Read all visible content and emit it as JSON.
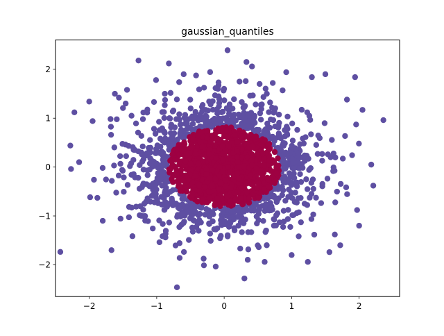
{
  "chart_data": {
    "type": "scatter",
    "title": "gaussian_quantiles",
    "xlabel": "",
    "ylabel": "",
    "xlim": [
      -2.5,
      2.6
    ],
    "ylim": [
      -2.65,
      2.6
    ],
    "xticks": [
      -2,
      -1,
      0,
      1,
      2
    ],
    "yticks": [
      -2,
      -1,
      0,
      1,
      2
    ],
    "xtick_labels": [
      "−2",
      "−1",
      "0",
      "1",
      "2"
    ],
    "ytick_labels": [
      "−2",
      "−1",
      "0",
      "1",
      "2"
    ],
    "grid": false,
    "legend": "none",
    "distribution": {
      "kind": "2d-gaussian",
      "mean": [
        0,
        0
      ],
      "std": 0.62,
      "samples": 2200,
      "class_boundary_radius": 0.82
    },
    "outlier_points": {
      "x": [
        -2.28,
        -2.22,
        -2.27,
        -2.15,
        -2.0,
        -1.95,
        -1.93,
        -1.8,
        -1.67,
        -1.62,
        -1.56,
        -1.46,
        -1.44,
        -1.27,
        -1.01,
        -0.88,
        -0.82,
        -0.7,
        -0.66,
        -0.6,
        0.05,
        0.3,
        0.33,
        0.6,
        0.72,
        0.92,
        1.0,
        1.24,
        1.3,
        1.5,
        1.56,
        1.64,
        1.72,
        1.82,
        1.94,
        1.97,
        2.0,
        2.05,
        2.18,
        2.21,
        2.36
      ],
      "y": [
        0.44,
        1.12,
        -0.04,
        0.1,
        1.34,
        0.94,
        -0.26,
        -1.1,
        -1.7,
        1.5,
        1.42,
        1.3,
        1.58,
        2.18,
        1.78,
        1.5,
        2.12,
        -2.46,
        -1.86,
        1.9,
        2.39,
        -2.28,
        2.15,
        -1.94,
        1.72,
        1.94,
        -1.8,
        -1.94,
        1.84,
        1.9,
        -1.74,
        -1.38,
        -1.6,
        1.38,
        1.84,
        -0.88,
        -1.2,
        1.17,
        0.05,
        -0.38,
        0.96
      ]
    },
    "series": [
      {
        "name": "",
        "class": 0,
        "color": "#9e0142"
      },
      {
        "name": "",
        "class": 1,
        "color": "#5e4fa2"
      }
    ]
  }
}
